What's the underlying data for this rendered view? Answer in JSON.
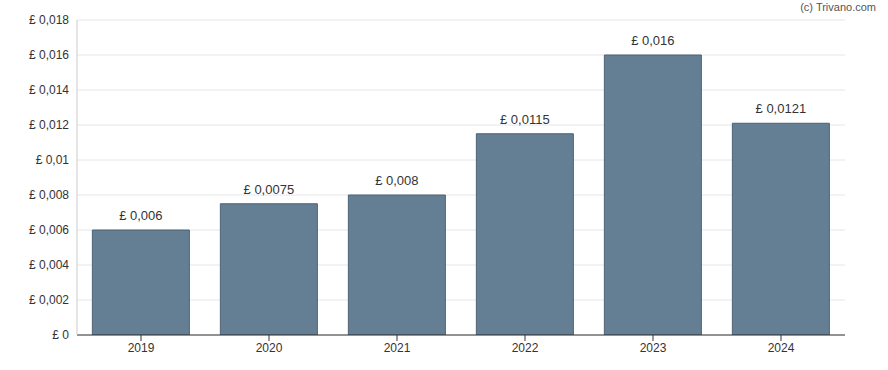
{
  "chart_data": {
    "type": "bar",
    "annotations": [
      "(c) Trivano.com"
    ],
    "categories": [
      "2019",
      "2020",
      "2021",
      "2022",
      "2023",
      "2024"
    ],
    "values": [
      0.006,
      0.0075,
      0.008,
      0.0115,
      0.016,
      0.0121
    ],
    "value_labels": [
      "£ 0,006",
      "£ 0,0075",
      "£ 0,008",
      "£ 0,0115",
      "£ 0,016",
      "£ 0,0121"
    ],
    "color": "#647f94",
    "ylim": [
      0,
      0.018
    ],
    "yticks": [
      {
        "value": 0,
        "label": "£ 0"
      },
      {
        "value": 0.002,
        "label": "£ 0,002"
      },
      {
        "value": 0.004,
        "label": "£ 0,004"
      },
      {
        "value": 0.006,
        "label": "£ 0,006"
      },
      {
        "value": 0.008,
        "label": "£ 0,008"
      },
      {
        "value": 0.01,
        "label": "£ 0,01"
      },
      {
        "value": 0.012,
        "label": "£ 0,012"
      },
      {
        "value": 0.014,
        "label": "£ 0,014"
      },
      {
        "value": 0.016,
        "label": "£ 0,016"
      },
      {
        "value": 0.018,
        "label": "£ 0,018"
      }
    ],
    "grid": true,
    "data_labels": true
  }
}
